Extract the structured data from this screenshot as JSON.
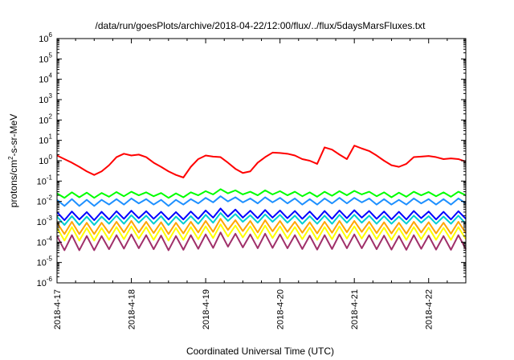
{
  "chart_data": {
    "type": "line",
    "title": "/data/run/goesPlots/archive/2018-04-22/12:00/flux/../flux/5daysMarsFluxes.txt",
    "xlabel": "Coordinated Universal Time (UTC)",
    "ylabel": {
      "prefix": "protons/cm",
      "superscript": "2",
      "suffix": "-s-sr-MeV"
    },
    "y_scale": "log",
    "ylim_exponents": [
      -6,
      6
    ],
    "y_tick_base": "10",
    "y_tick_exponents": [
      "-6",
      "-5",
      "-4",
      "-3",
      "-2",
      "-1",
      "0",
      "1",
      "2",
      "3",
      "4",
      "5",
      "6"
    ],
    "x_tick_labels": [
      "2018-4-17",
      "2018-4-18",
      "2018-4-19",
      "2018-4-20",
      "2018-4-21",
      "2018-4-22"
    ],
    "xlim": [
      "2018-04-17T00:00",
      "2018-04-22T12:00"
    ],
    "grid": false,
    "x_day_values": [
      0.0,
      0.1,
      0.2,
      0.3,
      0.4,
      0.5,
      0.6,
      0.7,
      0.8,
      0.9,
      1.0,
      1.1,
      1.2,
      1.3,
      1.4,
      1.5,
      1.6,
      1.7,
      1.8,
      1.9,
      2.0,
      2.1,
      2.2,
      2.3,
      2.4,
      2.5,
      2.6,
      2.7,
      2.8,
      2.9,
      3.0,
      3.1,
      3.2,
      3.3,
      3.4,
      3.5,
      3.6,
      3.7,
      3.8,
      3.9,
      4.0,
      4.1,
      4.2,
      4.3,
      4.4,
      4.5,
      4.6,
      4.7,
      4.8,
      4.9,
      5.0,
      5.1,
      5.2,
      5.3,
      5.4,
      5.5
    ],
    "series": [
      {
        "color": "#ff0000",
        "values": [
          1.8,
          1.2,
          0.8,
          0.5,
          0.3,
          0.2,
          0.3,
          0.6,
          1.5,
          2.2,
          1.8,
          2.0,
          1.5,
          0.8,
          0.5,
          0.3,
          0.2,
          0.15,
          0.5,
          1.2,
          1.8,
          1.6,
          1.5,
          0.8,
          0.4,
          0.25,
          0.3,
          0.8,
          1.5,
          2.5,
          2.4,
          2.2,
          1.8,
          1.2,
          1.0,
          0.7,
          4.5,
          3.5,
          2.0,
          1.2,
          5.5,
          4.0,
          3.0,
          1.8,
          1.0,
          0.6,
          0.5,
          0.7,
          1.5,
          1.6,
          1.7,
          1.5,
          1.2,
          1.3,
          1.2,
          0.9
        ]
      },
      {
        "color": "#00ff00",
        "values": [
          0.025,
          0.015,
          0.028,
          0.016,
          0.027,
          0.015,
          0.026,
          0.017,
          0.029,
          0.018,
          0.03,
          0.02,
          0.028,
          0.018,
          0.026,
          0.015,
          0.025,
          0.016,
          0.028,
          0.02,
          0.032,
          0.022,
          0.04,
          0.025,
          0.035,
          0.022,
          0.03,
          0.02,
          0.035,
          0.022,
          0.032,
          0.02,
          0.03,
          0.018,
          0.028,
          0.017,
          0.03,
          0.019,
          0.032,
          0.02,
          0.033,
          0.022,
          0.03,
          0.018,
          0.028,
          0.016,
          0.027,
          0.017,
          0.03,
          0.02,
          0.029,
          0.018,
          0.028,
          0.017,
          0.03,
          0.02
        ]
      },
      {
        "color": "#1e90ff",
        "values": [
          0.012,
          0.006,
          0.013,
          0.006,
          0.012,
          0.006,
          0.012,
          0.007,
          0.013,
          0.007,
          0.014,
          0.008,
          0.013,
          0.007,
          0.012,
          0.006,
          0.012,
          0.007,
          0.013,
          0.008,
          0.015,
          0.009,
          0.018,
          0.01,
          0.016,
          0.009,
          0.014,
          0.008,
          0.016,
          0.009,
          0.015,
          0.008,
          0.014,
          0.007,
          0.013,
          0.007,
          0.014,
          0.008,
          0.015,
          0.008,
          0.015,
          0.009,
          0.014,
          0.007,
          0.013,
          0.007,
          0.012,
          0.007,
          0.014,
          0.008,
          0.013,
          0.007,
          0.013,
          0.007,
          0.014,
          0.008
        ]
      },
      {
        "color": "#0000ff",
        "values": [
          0.003,
          0.0012,
          0.0032,
          0.0013,
          0.003,
          0.0012,
          0.0031,
          0.0013,
          0.0033,
          0.0014,
          0.0035,
          0.0015,
          0.0033,
          0.0014,
          0.0031,
          0.0013,
          0.003,
          0.0013,
          0.0032,
          0.0014,
          0.0036,
          0.0016,
          0.0045,
          0.0018,
          0.004,
          0.0016,
          0.0035,
          0.0015,
          0.0038,
          0.0016,
          0.0036,
          0.0015,
          0.0034,
          0.0014,
          0.0032,
          0.0013,
          0.0034,
          0.0014,
          0.0036,
          0.0015,
          0.0037,
          0.0016,
          0.0034,
          0.0014,
          0.0032,
          0.0013,
          0.0031,
          0.0013,
          0.0034,
          0.0015,
          0.0032,
          0.0013,
          0.0031,
          0.0013,
          0.0033,
          0.0014
        ]
      },
      {
        "color": "#00ced1",
        "values": [
          0.0018,
          0.0007,
          0.0019,
          0.0007,
          0.0018,
          0.0007,
          0.0018,
          0.0008,
          0.002,
          0.0008,
          0.0021,
          0.0009,
          0.002,
          0.0008,
          0.0019,
          0.0007,
          0.0018,
          0.0008,
          0.0019,
          0.0008,
          0.0022,
          0.0009,
          0.0027,
          0.0011,
          0.0024,
          0.001,
          0.0021,
          0.0009,
          0.0023,
          0.001,
          0.0022,
          0.0009,
          0.002,
          0.0008,
          0.0019,
          0.0008,
          0.002,
          0.0008,
          0.0022,
          0.0009,
          0.0022,
          0.0009,
          0.002,
          0.0008,
          0.0019,
          0.0008,
          0.0018,
          0.0008,
          0.002,
          0.0009,
          0.0019,
          0.0008,
          0.0018,
          0.0008,
          0.002,
          0.0008
        ]
      },
      {
        "color": "#ffa500",
        "values": [
          0.0009,
          0.00025,
          0.001,
          0.00025,
          0.0009,
          0.00025,
          0.0009,
          0.00028,
          0.001,
          0.0003,
          0.0011,
          0.0003,
          0.001,
          0.00028,
          0.00095,
          0.00025,
          0.0009,
          0.00027,
          0.001,
          0.0003,
          0.0011,
          0.00032,
          0.0014,
          0.0004,
          0.0012,
          0.00035,
          0.0011,
          0.0003,
          0.0012,
          0.00034,
          0.0011,
          0.00032,
          0.001,
          0.00029,
          0.00095,
          0.00027,
          0.001,
          0.00029,
          0.0011,
          0.00031,
          0.0011,
          0.00032,
          0.001,
          0.00028,
          0.00095,
          0.00027,
          0.0009,
          0.00026,
          0.001,
          0.0003,
          0.00095,
          0.00027,
          0.0009,
          0.00026,
          0.001,
          0.00028
        ]
      },
      {
        "color": "#ffff00",
        "values": [
          0.0005,
          0.00012,
          0.00055,
          0.00012,
          0.0005,
          0.00012,
          0.0005,
          0.00013,
          0.00055,
          0.00014,
          0.0006,
          0.00015,
          0.00055,
          0.00013,
          0.00052,
          0.00012,
          0.0005,
          0.00013,
          0.00055,
          0.00014,
          0.0006,
          0.00016,
          0.00075,
          0.00019,
          0.00065,
          0.00017,
          0.0006,
          0.00015,
          0.00065,
          0.00016,
          0.0006,
          0.00015,
          0.00055,
          0.00014,
          0.00052,
          0.00013,
          0.00055,
          0.00014,
          0.0006,
          0.00015,
          0.0006,
          0.00015,
          0.00055,
          0.00014,
          0.00052,
          0.00013,
          0.0005,
          0.00013,
          0.00055,
          0.00014,
          0.00052,
          0.00013,
          0.0005,
          0.00013,
          0.00055,
          0.00014
        ]
      },
      {
        "color": "#a0306a",
        "values": [
          0.0002,
          4e-05,
          0.00022,
          4e-05,
          0.0002,
          4e-05,
          0.0002,
          4.5e-05,
          0.00022,
          4.8e-05,
          0.00024,
          5e-05,
          0.00022,
          4.5e-05,
          0.00021,
          4e-05,
          0.0002,
          4.2e-05,
          0.00022,
          4.7e-05,
          0.00024,
          5.2e-05,
          0.0003,
          6e-05,
          0.00026,
          5.5e-05,
          0.00024,
          5e-05,
          0.00026,
          5.2e-05,
          0.00024,
          5e-05,
          0.00022,
          4.6e-05,
          0.00021,
          4.3e-05,
          0.00022,
          4.6e-05,
          0.00024,
          5e-05,
          0.00024,
          5e-05,
          0.00022,
          4.5e-05,
          0.00021,
          4.3e-05,
          0.0002,
          4.2e-05,
          0.00022,
          4.7e-05,
          0.00021,
          4.3e-05,
          0.0002,
          4.2e-05,
          0.00022,
          4.5e-05
        ]
      }
    ]
  }
}
